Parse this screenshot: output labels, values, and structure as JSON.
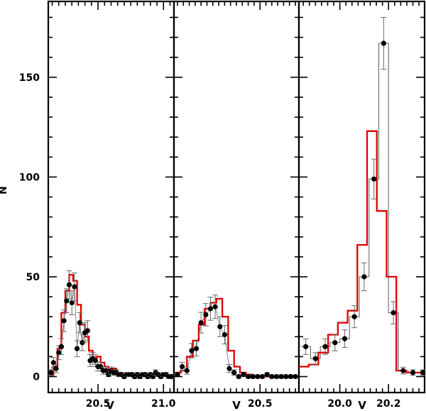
{
  "figure": {
    "ylabel": "N",
    "yticks": [
      "0",
      "50",
      "100",
      "150"
    ],
    "colors": {
      "model": "#dd0000",
      "observed": "#000000",
      "observed_step": "#6a6a6a",
      "errorbar": "#6a6a6a",
      "axes": "#000000"
    },
    "ytick_values": [
      0,
      50,
      100,
      150
    ],
    "ylim": [
      -8,
      188
    ]
  },
  "chart_data": [
    {
      "type": "line",
      "title": "",
      "xlabel": "V",
      "ylabel": "N",
      "xlim": [
        20.12,
        21.08
      ],
      "ylim": [
        -8,
        188
      ],
      "xtick_labels": [
        "20.5",
        "21.0"
      ],
      "xtick_values": [
        20.5,
        21.0
      ],
      "series": [
        {
          "role": "observed",
          "style": "points-with-errorbars",
          "x": [
            20.14,
            20.16,
            20.18,
            20.2,
            20.22,
            20.24,
            20.26,
            20.28,
            20.3,
            20.32,
            20.34,
            20.36,
            20.38,
            20.4,
            20.42,
            20.44,
            20.46,
            20.48,
            20.5,
            20.52,
            20.54,
            20.56,
            20.58,
            20.6,
            20.62,
            20.64,
            20.66,
            20.68,
            20.7,
            20.72,
            20.74,
            20.76,
            20.78,
            20.8,
            20.82,
            20.84,
            20.86,
            20.88,
            20.9,
            20.92,
            20.94,
            20.96,
            20.98,
            21.0,
            21.02,
            21.04,
            21.06
          ],
          "y": [
            2,
            7,
            4,
            12,
            15,
            28,
            38,
            46,
            37,
            45,
            14,
            27,
            17,
            22,
            23,
            8,
            9,
            8,
            5,
            5,
            3,
            3,
            1,
            3,
            2,
            2,
            1,
            1,
            0,
            1,
            1,
            1,
            0,
            1,
            0,
            1,
            1,
            0,
            1,
            0,
            2,
            1,
            0,
            1,
            1,
            0,
            0
          ],
          "err": [
            1.5,
            2.5,
            2,
            3.5,
            4,
            5.5,
            6,
            7,
            6,
            7,
            4,
            5,
            4,
            5,
            5,
            3,
            3,
            3,
            2.2,
            2.2,
            1.8,
            1.8,
            1,
            1.8,
            1.4,
            1.4,
            1,
            1,
            1,
            1,
            1,
            1,
            1,
            1,
            1,
            1,
            1,
            1,
            1,
            1,
            1.4,
            1,
            1,
            1,
            1,
            1,
            1
          ]
        },
        {
          "role": "model",
          "style": "step",
          "edges": [
            20.13,
            20.16,
            20.19,
            20.22,
            20.25,
            20.28,
            20.31,
            20.34,
            20.37,
            20.4,
            20.43,
            20.46,
            20.49,
            20.52,
            20.55,
            20.58,
            20.61,
            20.64,
            20.67,
            20.7,
            20.73,
            20.76,
            20.79,
            20.82,
            20.85,
            20.88,
            20.91,
            20.94,
            20.97,
            21.0,
            21.03,
            21.06
          ],
          "values": [
            1,
            5,
            14,
            32,
            43,
            51,
            48,
            36,
            26,
            20,
            13,
            8,
            10,
            7,
            5,
            3,
            4,
            2,
            1,
            1,
            1,
            0,
            1,
            0,
            1,
            0,
            1,
            1,
            0,
            1,
            0
          ]
        }
      ]
    },
    {
      "type": "line",
      "title": "",
      "xlabel": "V",
      "ylabel": "",
      "xlim": [
        20.135,
        20.665
      ],
      "ylim": [
        -8,
        188
      ],
      "xtick_labels": [
        "20.5"
      ],
      "xtick_values": [
        20.5
      ],
      "series": [
        {
          "role": "observed",
          "style": "points-with-errorbars",
          "x": [
            20.15,
            20.17,
            20.19,
            20.21,
            20.23,
            20.25,
            20.27,
            20.29,
            20.31,
            20.33,
            20.35,
            20.37,
            20.39,
            20.41,
            20.43,
            20.45,
            20.47,
            20.49,
            20.51,
            20.53,
            20.55,
            20.57,
            20.59,
            20.61,
            20.63,
            20.65
          ],
          "y": [
            1,
            5,
            3,
            13,
            14,
            27,
            31,
            34,
            35,
            25,
            21,
            4,
            2,
            0,
            1,
            0,
            0,
            0,
            0,
            1,
            0,
            0,
            0,
            0,
            0,
            0
          ],
          "err": [
            1,
            2.2,
            1.8,
            3.6,
            3.7,
            5.2,
            5.6,
            5.8,
            5.9,
            5,
            4.6,
            2,
            1.4,
            0.8,
            1,
            0.8,
            0.8,
            0.8,
            0.8,
            1,
            0.8,
            0.8,
            0.8,
            0.8,
            0.8,
            0.8
          ]
        },
        {
          "role": "model",
          "style": "step",
          "edges": [
            20.14,
            20.165,
            20.19,
            20.215,
            20.24,
            20.265,
            20.29,
            20.315,
            20.34,
            20.365,
            20.39,
            20.415,
            20.44,
            20.465,
            20.49,
            20.515,
            20.54,
            20.565,
            20.59,
            20.615,
            20.64,
            20.665
          ],
          "values": [
            2,
            3,
            10,
            18,
            26,
            34,
            37,
            39,
            30,
            13,
            5,
            2,
            1,
            0,
            0,
            0,
            0,
            0,
            0,
            0,
            0
          ]
        }
      ]
    },
    {
      "type": "line",
      "title": "",
      "xlabel": "V",
      "ylabel": "",
      "xlim": [
        19.832,
        20.348
      ],
      "ylim": [
        -8,
        188
      ],
      "xtick_labels": [
        "20.0",
        "20.2"
      ],
      "xtick_values": [
        20.0,
        20.2
      ],
      "series": [
        {
          "role": "observed",
          "style": "points-with-errorbars",
          "x": [
            19.86,
            19.9,
            19.94,
            19.98,
            20.02,
            20.06,
            20.1,
            20.14,
            20.18,
            20.22,
            20.26,
            20.3,
            20.34
          ],
          "y": [
            15,
            9,
            15,
            17,
            19,
            30,
            50,
            99,
            167,
            32,
            3,
            2,
            2
          ],
          "err": [
            3.9,
            3,
            3.9,
            4.1,
            4.4,
            5.5,
            7,
            10,
            13,
            5.6,
            1.7,
            1.4,
            1.4
          ],
          "step_edges": [
            19.84,
            19.88,
            19.92,
            19.96,
            20.0,
            20.04,
            20.08,
            20.12,
            20.16,
            20.2,
            20.24,
            20.28,
            20.32,
            20.348
          ],
          "step_values": [
            15,
            9,
            15,
            17,
            19,
            30,
            50,
            99,
            167,
            32,
            3,
            2,
            2
          ]
        },
        {
          "role": "model",
          "style": "step",
          "edges": [
            19.832,
            19.872,
            19.912,
            19.952,
            19.992,
            20.032,
            20.072,
            20.112,
            20.152,
            20.192,
            20.232,
            20.272,
            20.312,
            20.348
          ],
          "values": [
            5,
            6,
            12,
            21,
            27,
            33,
            66,
            123,
            83,
            50,
            3,
            2,
            2
          ]
        }
      ]
    }
  ]
}
